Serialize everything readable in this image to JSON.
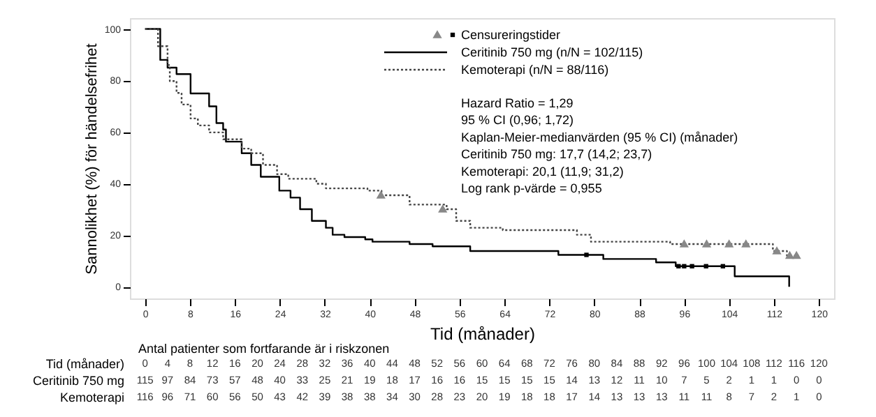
{
  "chart_data": {
    "type": "step",
    "xlabel": "Tid (månader)",
    "ylabel": "Sannolikhet (%) för händelsefrihet",
    "xlim": [
      -2.7,
      122.7
    ],
    "ylim": [
      -4.5,
      104.2
    ],
    "xticks": [
      0,
      8,
      16,
      24,
      32,
      40,
      48,
      56,
      64,
      72,
      80,
      88,
      96,
      104,
      112,
      120
    ],
    "yticks": [
      0,
      20,
      40,
      60,
      80,
      100
    ],
    "grid": false,
    "legend": "top right",
    "series": [
      {
        "name": "Censureringstider",
        "type": "scatter",
        "marker": "square",
        "color": "#000000",
        "x": [
          78.6,
          95,
          96,
          97.4,
          99.9,
          102.9
        ],
        "values": [
          12.4,
          8,
          8,
          8,
          8,
          8
        ]
      },
      {
        "type": "scatter",
        "marker": "triangle",
        "color": "#888888",
        "x": [
          42,
          53,
          96,
          100,
          104,
          107,
          112.5,
          114.8,
          116
        ],
        "values": [
          35.5,
          30.1,
          16.6,
          16.6,
          16.6,
          16.6,
          13.9,
          12.1,
          12.1
        ]
      },
      {
        "name": "Ceritinib 750 mg (n/N = 102/115)",
        "line_style": "solid",
        "color": "#000000",
        "x": [
          0,
          2.7,
          4,
          5.6,
          8.1,
          11.4,
          12.7,
          13.9,
          14.4,
          17.2,
          18.9,
          20.6,
          23.9,
          25.9,
          27.6,
          29.7,
          32.2,
          33.4,
          35.5,
          39.2,
          40.5,
          47.1,
          51.2,
          57.9,
          73.6,
          81.6,
          91,
          94.5,
          105,
          114.7
        ],
        "values": [
          100,
          88,
          85,
          82.5,
          75,
          70,
          63.5,
          61,
          56.3,
          51.8,
          47.3,
          42.7,
          37.3,
          34.6,
          30.1,
          25.6,
          22.9,
          20.2,
          19.3,
          18.4,
          17.5,
          16.6,
          15.7,
          13.9,
          12.4,
          10.8,
          9.5,
          8,
          4.1,
          0
        ]
      },
      {
        "name": "Kemoterapi (n/N = 88/116)",
        "line_style": "dotted",
        "color": "#444444",
        "x": [
          0,
          2.3,
          4,
          4.4,
          5.6,
          6.5,
          8.1,
          9.4,
          11.4,
          13.9,
          17.2,
          18.9,
          21,
          23.5,
          25.5,
          30.5,
          32.2,
          39.6,
          42.1,
          47.1,
          53.7,
          55.4,
          57.9,
          63.7,
          76.9,
          79.4,
          93.5,
          111.8,
          114.3,
          116.4
        ],
        "values": [
          100,
          93.3,
          86,
          79.8,
          75.2,
          70.7,
          65.3,
          62.6,
          59.9,
          57.2,
          53.6,
          51.8,
          47.3,
          43.7,
          41.9,
          40,
          38.2,
          37.3,
          35.5,
          31.9,
          30.1,
          25.6,
          22.9,
          22,
          20.2,
          17.5,
          16.6,
          13.9,
          12.1,
          12.1
        ]
      }
    ],
    "annotations": [
      "Hazard Ratio = 1,29",
      "95 % CI (0,96; 1,72)",
      "Kaplan-Meier-medianvärden (95 % CI) (månader)",
      "Ceritinib 750 mg: 17,7 (14,2; 23,7)",
      "Kemoterapi: 20,1 (11,9; 31,2)",
      "Log rank p-värde = 0,955",
      "Antal patienter som fortfarande är i riskzonen",
      "Tid (månader)",
      "Ceritinib 750 mg",
      "Kemoterapi",
      "0 4 8 12 16 20 24 28 32 36 40 44 48 52 56 60 64 68 72 76 80 84 88 92 96 100 104 108 112 116 120",
      "115 97 84 73 57 48 40 33 25 21 19 18 17 16 16 15 15 15 15 14 13 12 11 10 7 5 2 1 1 0 0",
      "116 96 71 60 56 50 43 42 39 38 38 34 30 28 23 20 19 18 18 17 14 13 13 13 11 11 8 7 2 1 0"
    ]
  }
}
